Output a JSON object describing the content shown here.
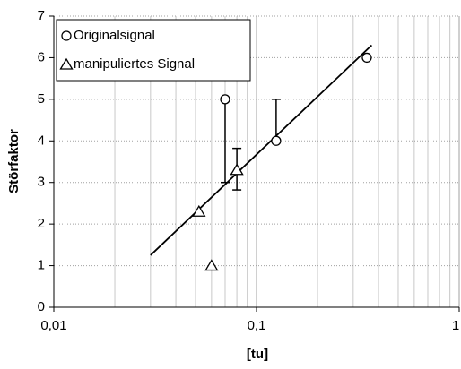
{
  "chart_data": {
    "type": "scatter",
    "x_label": "[tu]",
    "y_label": "Störfaktor",
    "xscale": "log",
    "xlim": [
      0.01,
      1
    ],
    "xticks": [
      {
        "value": 0.01,
        "label": "0,01"
      },
      {
        "value": 0.1,
        "label": "0,1"
      },
      1
    ],
    "ylim": [
      0,
      7
    ],
    "yticks": [
      0,
      1,
      2,
      3,
      4,
      5,
      6,
      7
    ],
    "grid": true,
    "legend": "upper left",
    "series": [
      {
        "name": "Originalsignal",
        "marker": "circle",
        "color": "#000000",
        "x": [
          0.07,
          0.125,
          0.35
        ],
        "values": [
          5,
          4,
          6
        ],
        "error_minus": [
          2,
          0,
          null
        ],
        "error_plus": [
          0,
          1,
          null
        ]
      },
      {
        "name": "manipuliertes Signal",
        "marker": "triangle",
        "color": "#000000",
        "x": [
          0.052,
          0.06,
          0.08
        ],
        "values": [
          2.3,
          1,
          3.3
        ],
        "error_minus": [
          null,
          null,
          0.48
        ],
        "error_plus": [
          null,
          null,
          0.52
        ]
      }
    ],
    "trendline": {
      "color": "#000000",
      "x": [
        0.03,
        0.37
      ],
      "y": [
        1.25,
        6.3
      ]
    }
  }
}
